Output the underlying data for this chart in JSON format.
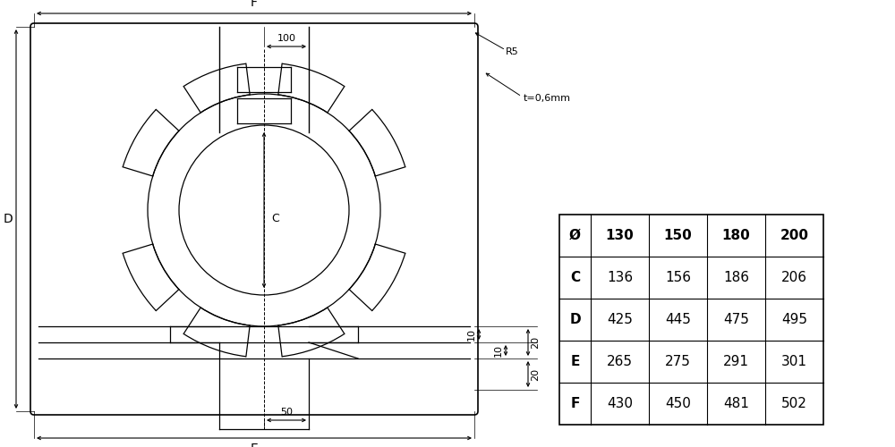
{
  "bg_color": "#ffffff",
  "line_color": "#000000",
  "table": {
    "headers": [
      "Ø",
      "130",
      "150",
      "180",
      "200"
    ],
    "rows": [
      [
        "C",
        "136",
        "156",
        "186",
        "206"
      ],
      [
        "D",
        "425",
        "445",
        "475",
        "495"
      ],
      [
        "E",
        "265",
        "275",
        "291",
        "301"
      ],
      [
        "F",
        "430",
        "450",
        "481",
        "502"
      ]
    ]
  }
}
